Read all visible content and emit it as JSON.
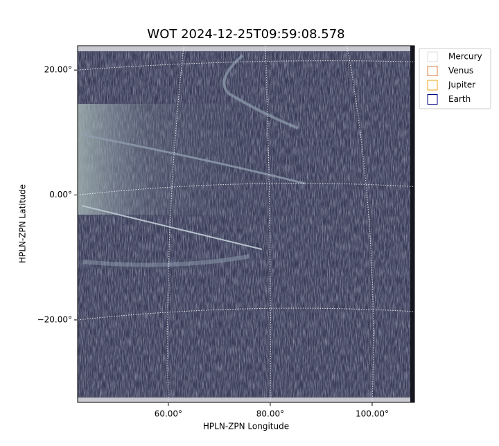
{
  "chart_data": {
    "type": "image",
    "title": "WOT 2024-12-25T09:59:08.578",
    "xlabel": "HPLN-ZPN Longitude",
    "ylabel": "HPLN-ZPN Latitude",
    "xlim": [
      42.2,
      108.3
    ],
    "ylim": [
      -33.2,
      23.9
    ],
    "xticks": [
      {
        "value": 60,
        "label": "60.00°"
      },
      {
        "value": 80,
        "label": "80.00°"
      },
      {
        "value": 100,
        "label": "100.00°"
      }
    ],
    "yticks": [
      {
        "value": 20,
        "label": "20.00°"
      },
      {
        "value": 0,
        "label": "0.00°"
      },
      {
        "value": -20,
        "label": "−20.00°"
      }
    ],
    "grid": true,
    "legend": {
      "position": "upper right outside",
      "entries": [
        {
          "name": "Mercury",
          "color": "#dddddd"
        },
        {
          "name": "Venus",
          "color": "#e07b39"
        },
        {
          "name": "Jupiter",
          "color": "#e8a317"
        },
        {
          "name": "Earth",
          "color": "#000080"
        }
      ]
    }
  }
}
